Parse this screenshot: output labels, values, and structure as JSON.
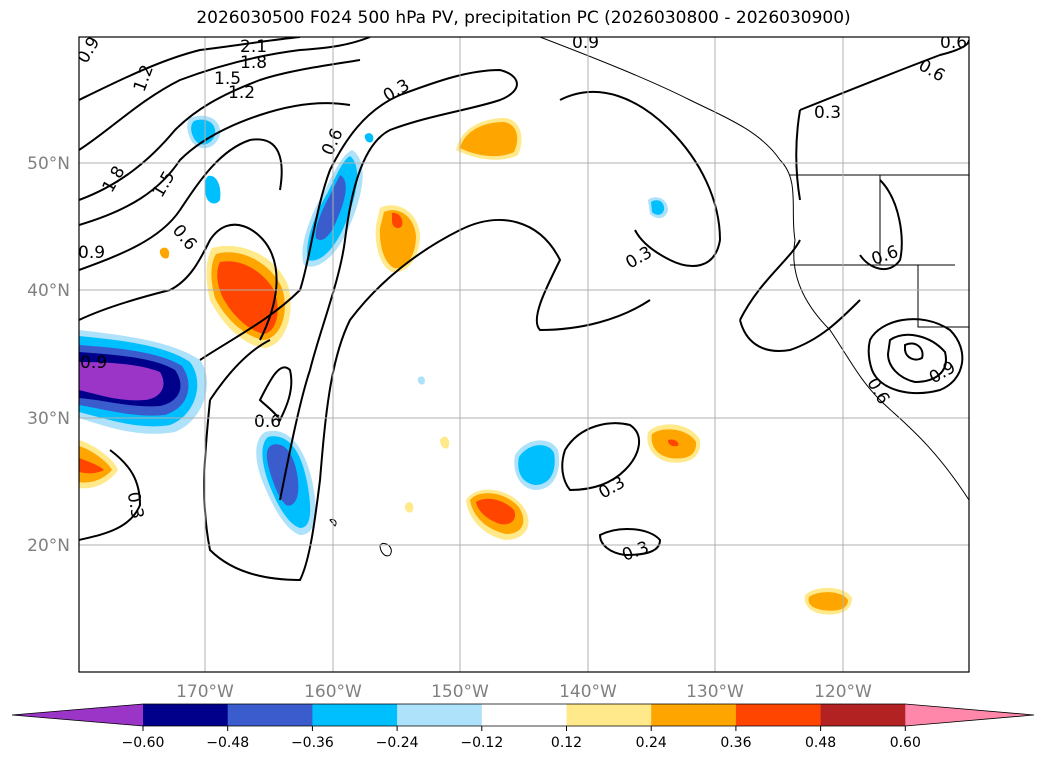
{
  "title": "2026030500 F024 500 hPa PV, precipitation PC (2026030800 - 2026030900)",
  "latitude_labels": [
    "50°N",
    "40°N",
    "30°N",
    "20°N"
  ],
  "longitude_labels": [
    "170°W",
    "160°W",
    "150°W",
    "140°W",
    "130°W",
    "120°W"
  ],
  "contour_labels": [
    "0.9",
    "1.2",
    "2.1",
    "1.8",
    "1.5",
    "1.2",
    "0.3",
    "0.6",
    "0.9",
    "0.6",
    "1.8",
    "1.5",
    "0.6",
    "0.9",
    "0.6",
    "0.3",
    "0.6",
    "0.6",
    "0.9",
    "0.3",
    "0.3",
    "0.3",
    "0.3",
    "0.6",
    "0.9"
  ],
  "colorbar": {
    "ticks": [
      "−0.60",
      "−0.48",
      "−0.36",
      "−0.24",
      "−0.12",
      "0.12",
      "0.24",
      "0.36",
      "0.48",
      "0.60"
    ],
    "colors": [
      "#9b35c8",
      "#00008b",
      "#3a5ccc",
      "#00bfff",
      "#aee1fa",
      "#ffffff",
      "#ffe98a",
      "#ffa500",
      "#ff4500",
      "#b22222",
      "#ff88aa"
    ]
  },
  "colors": {
    "grid": "#b0b0b0",
    "contour": "#000000",
    "axis_label": "#808080"
  }
}
